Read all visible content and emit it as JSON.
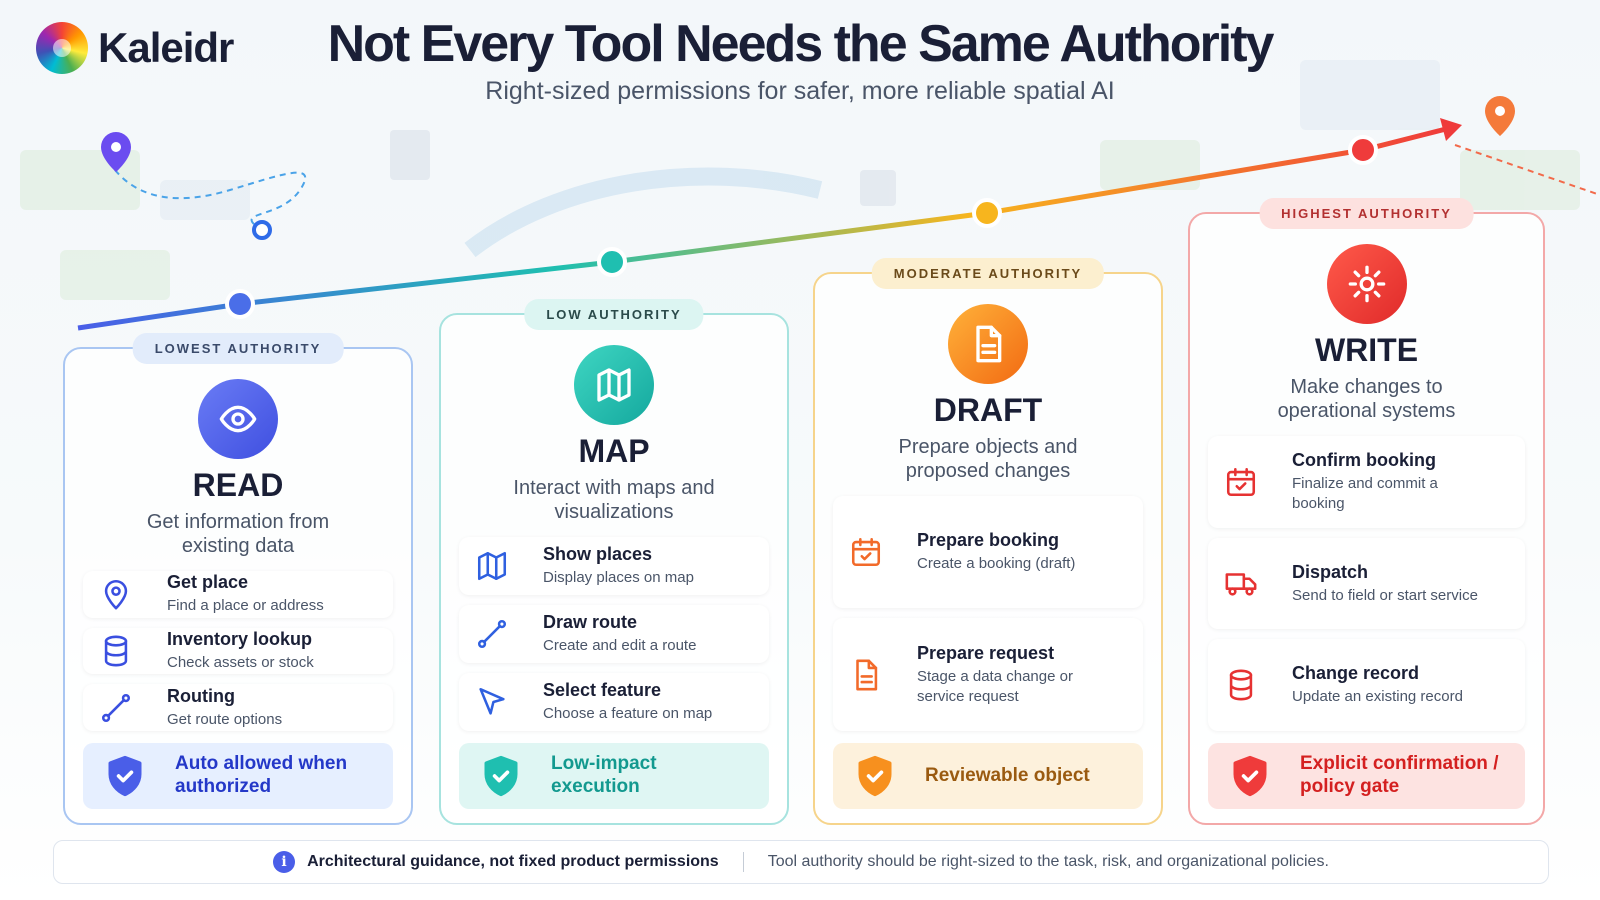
{
  "brand": "Kaleidr",
  "title": "Not Every Tool Needs the Same Authority",
  "subtitle": "Right-sized permissions for safer, more reliable spatial AI",
  "tiers": [
    {
      "badge": "LOWEST AUTHORITY",
      "name": "READ",
      "description": "Get information from existing data",
      "tools": [
        {
          "name": "Get place",
          "description": "Find a place or address"
        },
        {
          "name": "Inventory lookup",
          "description": "Check assets or stock"
        },
        {
          "name": "Routing",
          "description": "Get route options"
        }
      ],
      "outcome": "Auto allowed when authorized"
    },
    {
      "badge": "LOW AUTHORITY",
      "name": "MAP",
      "description": "Interact with maps and visualizations",
      "tools": [
        {
          "name": "Show places",
          "description": "Display places on map"
        },
        {
          "name": "Draw route",
          "description": "Create and edit a route"
        },
        {
          "name": "Select feature",
          "description": "Choose a feature on map"
        }
      ],
      "outcome": "Low-impact execution"
    },
    {
      "badge": "MODERATE AUTHORITY",
      "name": "DRAFT",
      "description": "Prepare objects and proposed changes",
      "tools": [
        {
          "name": "Prepare booking",
          "description": "Create a booking (draft)"
        },
        {
          "name": "Prepare request",
          "description": "Stage a data change or service request"
        }
      ],
      "outcome": "Reviewable object"
    },
    {
      "badge": "HIGHEST AUTHORITY",
      "name": "WRITE",
      "description": "Make changes to operational systems",
      "tools": [
        {
          "name": "Confirm booking",
          "description": "Finalize and commit a booking"
        },
        {
          "name": "Dispatch",
          "description": "Send to field or start service"
        },
        {
          "name": "Change record",
          "description": "Update an existing record"
        }
      ],
      "outcome": "Explicit confirmation / policy gate"
    }
  ],
  "footer": {
    "note": "Architectural guidance, not fixed product permissions",
    "detail": "Tool authority should be right-sized to the task, risk, and organizational policies."
  }
}
